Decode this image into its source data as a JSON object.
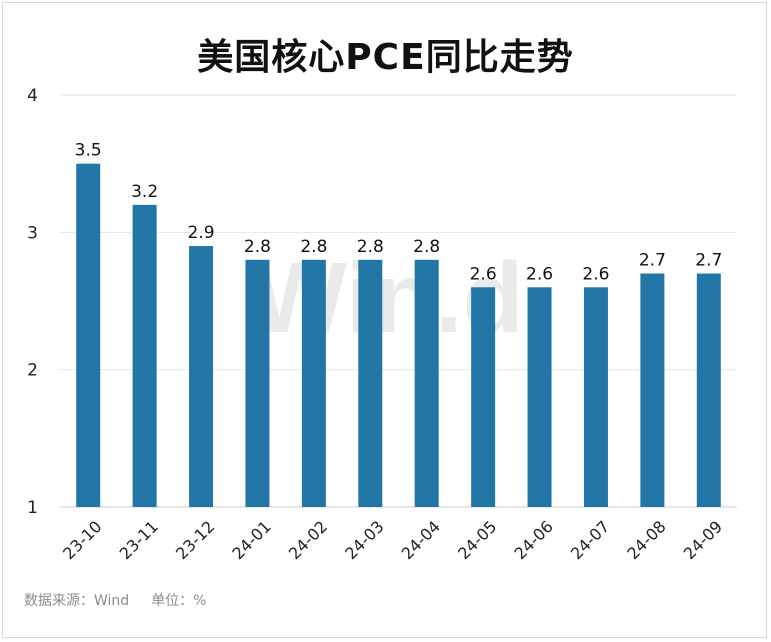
{
  "title": "美国核心PCE同比走势",
  "source": "数据来源：Wind",
  "unit": "单位：%",
  "watermark": "Win.d",
  "colors": {
    "bar": "#2176a5",
    "grid": "#e6e6e6",
    "axis": "#cfcfcf"
  },
  "chart_data": {
    "type": "bar",
    "title": "美国核心PCE同比走势",
    "xlabel": "",
    "ylabel": "",
    "ylim": [
      1,
      4
    ],
    "yticks": [
      1,
      2,
      3,
      4
    ],
    "grid": true,
    "categories": [
      "23-10",
      "23-11",
      "23-12",
      "24-01",
      "24-02",
      "24-03",
      "24-04",
      "24-05",
      "24-06",
      "24-07",
      "24-08",
      "24-09"
    ],
    "values": [
      3.5,
      3.2,
      2.9,
      2.8,
      2.8,
      2.8,
      2.8,
      2.6,
      2.6,
      2.6,
      2.7,
      2.7
    ],
    "data_labels": true
  }
}
